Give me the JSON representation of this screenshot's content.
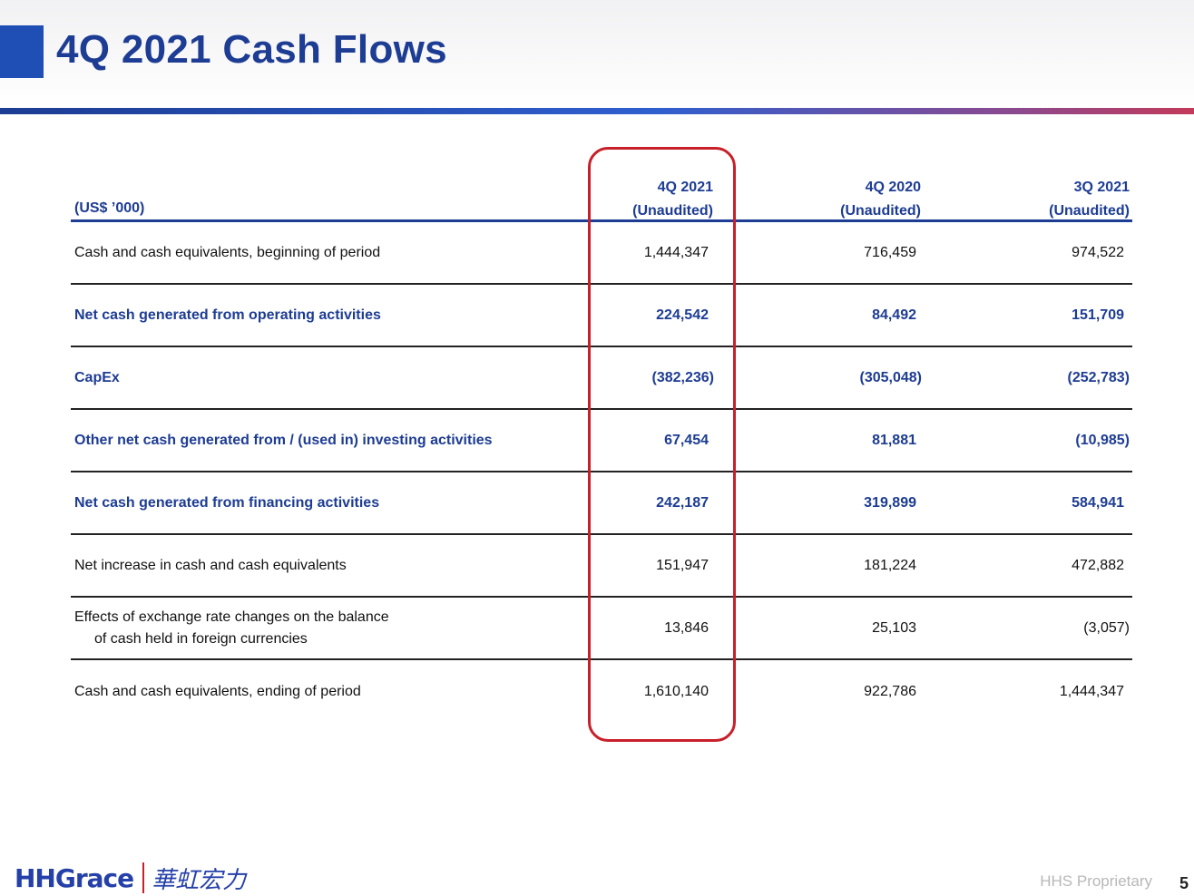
{
  "slide": {
    "title": "4Q 2021 Cash Flows",
    "footer": "HHS Proprietary",
    "page_number": "5"
  },
  "logo": {
    "latin": "HHGrace",
    "chinese": "華虹宏力"
  },
  "table": {
    "unit_label": "(US$ ’000)",
    "columns": [
      {
        "period": "4Q 2021",
        "note": "(Unaudited)"
      },
      {
        "period": "4Q 2020",
        "note": "(Unaudited)"
      },
      {
        "period": "3Q 2021",
        "note": "(Unaudited)"
      }
    ],
    "rows": [
      {
        "label": "Cash and cash equivalents, beginning of period",
        "values": [
          "1,444,347",
          "716,459",
          "974,522"
        ],
        "bold": false
      },
      {
        "label": "Net cash generated from operating activities",
        "values": [
          "224,542",
          "84,492",
          "151,709"
        ],
        "bold": true
      },
      {
        "label": "CapEx",
        "values": [
          "(382,236)",
          "(305,048)",
          "(252,783)"
        ],
        "bold": true
      },
      {
        "label": "Other net cash generated from / (used in) investing activities",
        "values": [
          "67,454",
          "81,881",
          "(10,985)"
        ],
        "bold": true
      },
      {
        "label": "Net cash generated from financing activities",
        "values": [
          "242,187",
          "319,899",
          "584,941"
        ],
        "bold": true
      },
      {
        "label": "Net increase in cash and cash equivalents",
        "values": [
          "151,947",
          "181,224",
          "472,882"
        ],
        "bold": false
      },
      {
        "label": "Effects of exchange rate changes on the balance",
        "label2": "of cash held in foreign currencies",
        "values": [
          "13,846",
          "25,103",
          "(3,057)"
        ],
        "bold": false
      },
      {
        "label": "Cash and cash equivalents, ending of period",
        "values": [
          "1,610,140",
          "922,786",
          "1,444,347"
        ],
        "bold": false
      }
    ]
  },
  "colors": {
    "title_blue": "#1d3c93",
    "highlight_red": "#c8202a"
  }
}
